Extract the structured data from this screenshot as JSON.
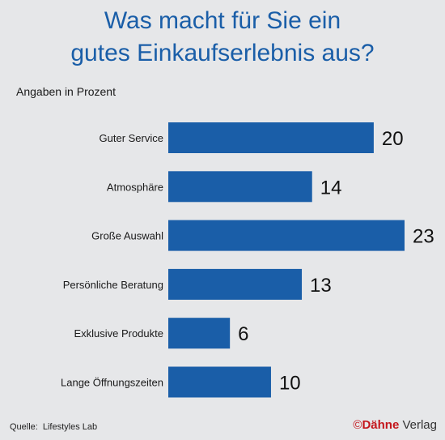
{
  "title_line1": "Was macht für Sie ein",
  "title_line2": "gutes Einkaufserlebnis aus?",
  "subtitle": "Angaben in Prozent",
  "source_prefix": "Quelle:",
  "source_name": "Lifestyles Lab",
  "brand": {
    "copyright": "©",
    "name": "Dähne",
    "suffix": "Verlag"
  },
  "colors": {
    "bar": "#1a5ea8",
    "title": "#1a5ea8",
    "background": "#e6e7e9",
    "brand": "#c4161c"
  },
  "chart_data": {
    "type": "bar",
    "orientation": "horizontal",
    "title": "Was macht für Sie ein gutes Einkaufserlebnis aus?",
    "subtitle": "Angaben in Prozent",
    "categories": [
      "Guter Service",
      "Atmosphäre",
      "Große Auswahl",
      "Persönliche Beratung",
      "Exklusive Produkte",
      "Lange Öffnungszeiten"
    ],
    "values": [
      20,
      14,
      23,
      13,
      6,
      10
    ],
    "xlim": [
      0,
      23
    ],
    "grid": false,
    "legend": "none",
    "data_labels": true
  }
}
